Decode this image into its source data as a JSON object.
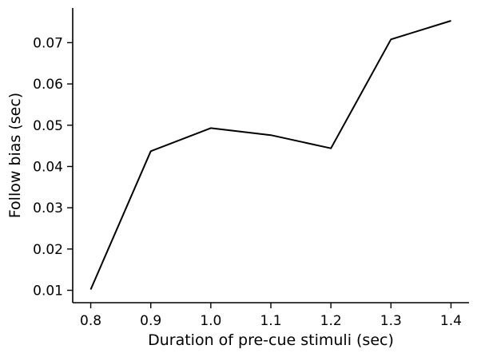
{
  "chart_data": {
    "type": "line",
    "title": "",
    "xlabel": "Duration of pre-cue stimuli (sec)",
    "ylabel": "Follow bias (sec)",
    "x": [
      0.8,
      0.9,
      1.0,
      1.1,
      1.2,
      1.3,
      1.4
    ],
    "series": [
      {
        "values": [
          0.0102,
          0.0437,
          0.0493,
          0.0476,
          0.0444,
          0.0708,
          0.0753
        ]
      }
    ],
    "xticks": [
      "0.8",
      "0.9",
      "1.0",
      "1.1",
      "1.2",
      "1.3",
      "1.4"
    ],
    "yticks": [
      "0.01",
      "0.02",
      "0.03",
      "0.04",
      "0.05",
      "0.06",
      "0.07"
    ],
    "xlim": [
      0.77,
      1.43
    ],
    "ylim": [
      0.007,
      0.0784
    ],
    "grid": false,
    "line_color": "#000000"
  }
}
